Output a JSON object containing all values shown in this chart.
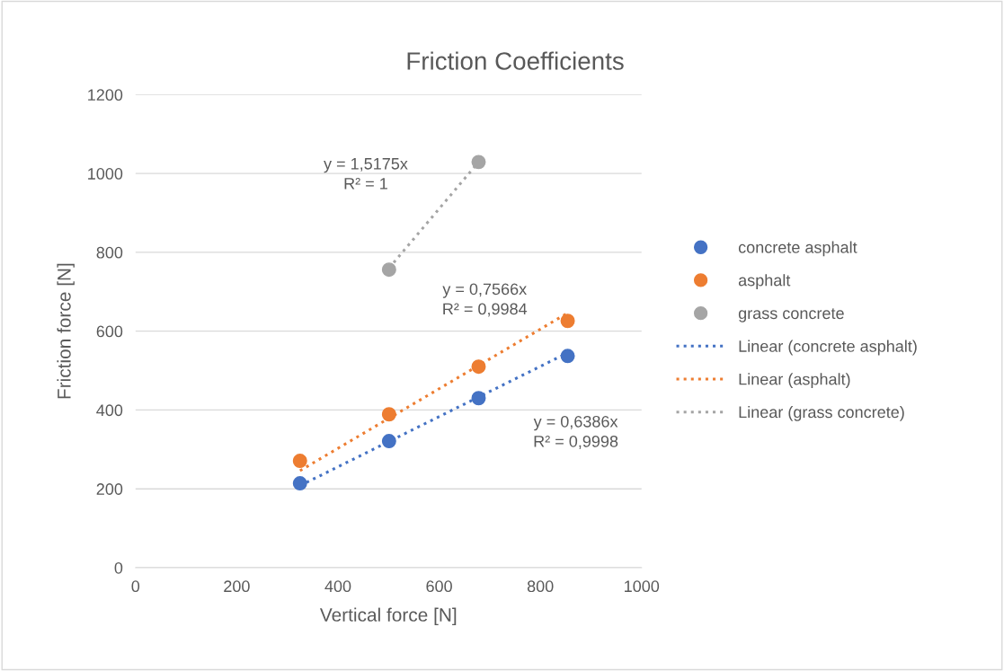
{
  "chart_data": {
    "type": "scatter",
    "title": "Friction Coefficients",
    "xlabel": "Vertical force [N]",
    "ylabel": "Friction force [N]",
    "xlim": [
      0,
      1000
    ],
    "xticks": [
      0,
      200,
      400,
      600,
      800,
      1000
    ],
    "ylim": [
      0,
      1200
    ],
    "yticks": [
      0,
      200,
      400,
      600,
      800,
      1000,
      1200
    ],
    "grid": "y",
    "legend": "right",
    "marker": "circle",
    "series": [
      {
        "name": "concrete asphalt",
        "color": "#4472c4",
        "x": [
          325,
          501,
          678,
          854
        ],
        "values": [
          214,
          321,
          430,
          537
        ]
      },
      {
        "name": "asphalt",
        "color": "#ed7d31",
        "x": [
          325,
          501,
          678,
          854
        ],
        "values": [
          271,
          389,
          510,
          626
        ]
      },
      {
        "name": "grass concrete",
        "color": "#a5a5a5",
        "x": [
          501,
          678
        ],
        "values": [
          756,
          1029
        ]
      },
      {
        "name": "Linear (concrete asphalt)",
        "type": "line",
        "line_style": "dotted",
        "marker": "none",
        "color": "#4472c4",
        "x": [
          325,
          854
        ],
        "values": [
          208,
          545
        ]
      },
      {
        "name": "Linear (asphalt)",
        "type": "line",
        "line_style": "dotted",
        "marker": "none",
        "color": "#ed7d31",
        "x": [
          325,
          854
        ],
        "values": [
          246,
          646
        ]
      },
      {
        "name": "Linear (grass concrete)",
        "type": "line",
        "line_style": "dotted",
        "marker": "none",
        "color": "#a5a5a5",
        "x": [
          501,
          678
        ],
        "values": [
          760,
          1029
        ]
      }
    ],
    "annotations": [
      "y = 1,5175x\nR² = 1",
      "y = 0,7566x\nR² = 0,9984",
      "y = 0,6386x\nR² = 0,9998"
    ]
  }
}
